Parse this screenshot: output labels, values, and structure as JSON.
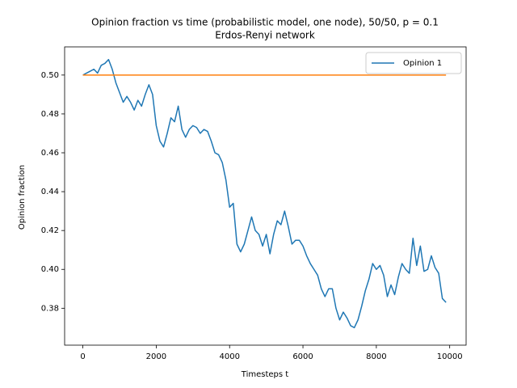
{
  "chart_data": {
    "type": "line",
    "title": "Opinion fraction vs time (probabilistic model, one node), 50/50, p = 0.1",
    "subtitle": "Erdos-Renyi network",
    "x_label": "Timesteps t",
    "y_label": "Opinion fraction",
    "x": [
      0,
      100,
      200,
      300,
      400,
      500,
      600,
      700,
      800,
      900,
      1000,
      1100,
      1200,
      1300,
      1400,
      1500,
      1600,
      1700,
      1800,
      1900,
      2000,
      2100,
      2200,
      2300,
      2400,
      2500,
      2600,
      2700,
      2800,
      2900,
      3000,
      3100,
      3200,
      3300,
      3400,
      3500,
      3600,
      3700,
      3800,
      3900,
      4000,
      4100,
      4200,
      4300,
      4400,
      4500,
      4600,
      4700,
      4800,
      4900,
      5000,
      5100,
      5200,
      5300,
      5400,
      5500,
      5600,
      5700,
      5800,
      5900,
      6000,
      6100,
      6200,
      6300,
      6400,
      6500,
      6600,
      6700,
      6800,
      6900,
      7000,
      7100,
      7200,
      7300,
      7400,
      7500,
      7600,
      7700,
      7800,
      7900,
      8000,
      8100,
      8200,
      8300,
      8400,
      8500,
      8600,
      8700,
      8800,
      8900,
      9000,
      9100,
      9200,
      9300,
      9400,
      9500,
      9600,
      9700,
      9800,
      9900
    ],
    "series": [
      {
        "name": "Opinion 1",
        "color": "#1f77b4",
        "values": [
          0.5,
          0.501,
          0.502,
          0.503,
          0.501,
          0.505,
          0.506,
          0.508,
          0.503,
          0.496,
          0.491,
          0.486,
          0.489,
          0.486,
          0.482,
          0.487,
          0.484,
          0.49,
          0.495,
          0.49,
          0.474,
          0.466,
          0.463,
          0.47,
          0.478,
          0.476,
          0.484,
          0.472,
          0.468,
          0.472,
          0.474,
          0.473,
          0.47,
          0.472,
          0.471,
          0.466,
          0.46,
          0.459,
          0.455,
          0.446,
          0.432,
          0.434,
          0.413,
          0.409,
          0.413,
          0.42,
          0.427,
          0.42,
          0.418,
          0.412,
          0.418,
          0.408,
          0.418,
          0.425,
          0.423,
          0.43,
          0.422,
          0.413,
          0.415,
          0.415,
          0.412,
          0.407,
          0.403,
          0.4,
          0.397,
          0.39,
          0.386,
          0.39,
          0.39,
          0.38,
          0.374,
          0.378,
          0.375,
          0.371,
          0.37,
          0.374,
          0.381,
          0.389,
          0.395,
          0.403,
          0.4,
          0.402,
          0.397,
          0.386,
          0.392,
          0.387,
          0.396,
          0.403,
          0.4,
          0.398,
          0.416,
          0.402,
          0.412,
          0.399,
          0.4,
          0.407,
          0.401,
          0.398,
          0.385,
          0.383
        ]
      },
      {
        "color": "#ff7f0e",
        "values": [
          0.5,
          0.5,
          0.5,
          0.5,
          0.5,
          0.5,
          0.5,
          0.5,
          0.5,
          0.5,
          0.5,
          0.5,
          0.5,
          0.5,
          0.5,
          0.5,
          0.5,
          0.5,
          0.5,
          0.5,
          0.5,
          0.5,
          0.5,
          0.5,
          0.5,
          0.5,
          0.5,
          0.5,
          0.5,
          0.5,
          0.5,
          0.5,
          0.5,
          0.5,
          0.5,
          0.5,
          0.5,
          0.5,
          0.5,
          0.5,
          0.5,
          0.5,
          0.5,
          0.5,
          0.5,
          0.5,
          0.5,
          0.5,
          0.5,
          0.5,
          0.5,
          0.5,
          0.5,
          0.5,
          0.5,
          0.5,
          0.5,
          0.5,
          0.5,
          0.5,
          0.5,
          0.5,
          0.5,
          0.5,
          0.5,
          0.5,
          0.5,
          0.5,
          0.5,
          0.5,
          0.5,
          0.5,
          0.5,
          0.5,
          0.5,
          0.5,
          0.5,
          0.5,
          0.5,
          0.5,
          0.5,
          0.5,
          0.5,
          0.5,
          0.5,
          0.5,
          0.5,
          0.5,
          0.5,
          0.5,
          0.5,
          0.5,
          0.5,
          0.5,
          0.5,
          0.5,
          0.5,
          0.5,
          0.5,
          0.5
        ]
      }
    ],
    "xlim": [
      -497.5,
      10447.5
    ],
    "xticks": [
      0,
      2000,
      4000,
      6000,
      8000,
      10000
    ],
    "ylim": [
      0.361,
      0.5145
    ],
    "yticks": [
      {
        "value": 0.38,
        "label": "0.38"
      },
      {
        "value": 0.4,
        "label": "0.40"
      },
      {
        "value": 0.42,
        "label": "0.42"
      },
      {
        "value": 0.44,
        "label": "0.44"
      },
      {
        "value": 0.46,
        "label": "0.46"
      },
      {
        "value": 0.48,
        "label": "0.48"
      },
      {
        "value": 0.5,
        "label": "0.50"
      }
    ],
    "legend": "upper right",
    "grid": false
  }
}
